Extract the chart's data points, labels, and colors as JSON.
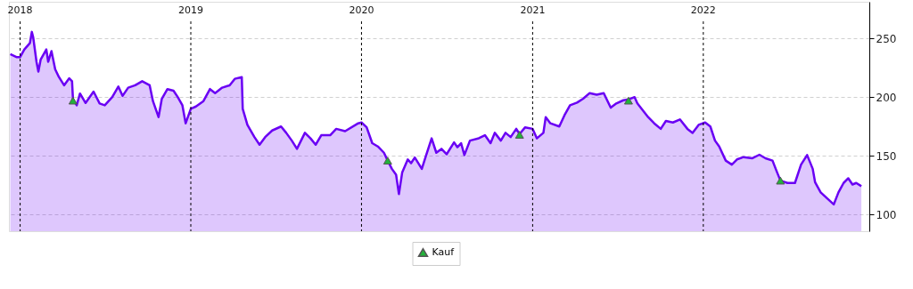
{
  "chart_data": {
    "type": "area",
    "xlim": [
      "2017-12-08",
      "2022-12-22"
    ],
    "ylim": [
      86,
      281
    ],
    "yticks": [
      100,
      150,
      200,
      250
    ],
    "xticks": [
      {
        "value": "2018-01-01",
        "label": "2018"
      },
      {
        "value": "2019-01-01",
        "label": "2019"
      },
      {
        "value": "2020-01-01",
        "label": "2020"
      },
      {
        "value": "2021-01-01",
        "label": "2021"
      },
      {
        "value": "2022-01-01",
        "label": "2022"
      }
    ],
    "grid": true,
    "legend": "bottom",
    "series": [
      {
        "color": "#6a00f4",
        "x": [
          "2017-12-11",
          "2017-12-24",
          "2018-01-01",
          "2018-01-10",
          "2018-01-22",
          "2018-01-26",
          "2018-01-29",
          "2018-02-05",
          "2018-02-09",
          "2018-02-14",
          "2018-02-26",
          "2018-03-02",
          "2018-03-09",
          "2018-03-17",
          "2018-03-25",
          "2018-04-05",
          "2018-04-16",
          "2018-04-22",
          "2018-04-24",
          "2018-05-02",
          "2018-05-09",
          "2018-05-21",
          "2018-06-07",
          "2018-06-20",
          "2018-07-01",
          "2018-07-17",
          "2018-07-30",
          "2018-08-08",
          "2018-08-20",
          "2018-09-04",
          "2018-09-19",
          "2018-10-05",
          "2018-10-12",
          "2018-10-24",
          "2018-10-31",
          "2018-11-12",
          "2018-11-25",
          "2018-12-04",
          "2018-12-14",
          "2018-12-21",
          "2019-01-01",
          "2019-01-12",
          "2019-01-28",
          "2019-02-11",
          "2019-02-22",
          "2019-03-09",
          "2019-03-25",
          "2019-04-05",
          "2019-04-20",
          "2019-04-22",
          "2019-05-02",
          "2019-05-17",
          "2019-05-28",
          "2019-06-09",
          "2019-06-24",
          "2019-07-13",
          "2019-07-24",
          "2019-08-05",
          "2019-08-16",
          "2019-09-02",
          "2019-09-14",
          "2019-09-25",
          "2019-10-07",
          "2019-10-26",
          "2019-11-08",
          "2019-11-27",
          "2019-12-25",
          "2020-01-01",
          "2020-01-12",
          "2020-01-24",
          "2020-02-05",
          "2020-02-18",
          "2020-02-26",
          "2020-03-06",
          "2020-03-15",
          "2020-03-21",
          "2020-03-28",
          "2020-04-09",
          "2020-04-16",
          "2020-04-24",
          "2020-05-09",
          "2020-05-17",
          "2020-05-30",
          "2020-06-09",
          "2020-06-20",
          "2020-07-01",
          "2020-07-17",
          "2020-07-24",
          "2020-08-01",
          "2020-08-08",
          "2020-08-20",
          "2020-09-08",
          "2020-09-21",
          "2020-10-03",
          "2020-10-12",
          "2020-10-25",
          "2020-11-04",
          "2020-11-15",
          "2020-11-27",
          "2020-12-04",
          "2020-12-16",
          "2021-01-01",
          "2021-01-10",
          "2021-01-24",
          "2021-01-29",
          "2021-02-08",
          "2021-02-27",
          "2021-03-10",
          "2021-03-22",
          "2021-04-06",
          "2021-04-19",
          "2021-05-03",
          "2021-05-18",
          "2021-06-02",
          "2021-06-17",
          "2021-06-29",
          "2021-07-14",
          "2021-07-25",
          "2021-08-07",
          "2021-08-13",
          "2021-09-05",
          "2021-09-18",
          "2021-10-02",
          "2021-10-13",
          "2021-10-28",
          "2021-11-12",
          "2021-11-28",
          "2021-12-09",
          "2021-12-22",
          "2022-01-05",
          "2022-01-16",
          "2022-01-26",
          "2022-02-04",
          "2022-02-18",
          "2022-03-03",
          "2022-03-14",
          "2022-03-28",
          "2022-04-16",
          "2022-05-01",
          "2022-05-14",
          "2022-05-29",
          "2022-06-08",
          "2022-06-15",
          "2022-06-30",
          "2022-07-16",
          "2022-07-29",
          "2022-08-11",
          "2022-08-23",
          "2022-08-28",
          "2022-09-09",
          "2022-09-24",
          "2022-10-07",
          "2022-10-17",
          "2022-10-28",
          "2022-11-07",
          "2022-11-16",
          "2022-11-24",
          "2022-12-05"
        ],
        "values": [
          236.5,
          234,
          234,
          240.5,
          246,
          255.4,
          250.7,
          230,
          221.6,
          232,
          240.5,
          230,
          239,
          223.6,
          217,
          210,
          216,
          213.5,
          198,
          193,
          203,
          195,
          204.7,
          194.6,
          193,
          200,
          209,
          201,
          208,
          210,
          213.5,
          210,
          196.6,
          183,
          198.6,
          206.8,
          205.4,
          200,
          193,
          177.7,
          190,
          192,
          196.6,
          206.8,
          203.4,
          208,
          210,
          215.5,
          217,
          190,
          176.4,
          166,
          159.5,
          166,
          171.6,
          175,
          169.6,
          163,
          156,
          169.6,
          164.9,
          159.5,
          167.6,
          167.6,
          173,
          171,
          177.7,
          178.4,
          174.3,
          160.8,
          158,
          152.7,
          146,
          139,
          134,
          117.6,
          135.8,
          147,
          143.8,
          148.6,
          139,
          149,
          164.9,
          152.7,
          156,
          151.4,
          161.5,
          157.4,
          160.8,
          150.7,
          163,
          165,
          167.6,
          160.8,
          169.6,
          163,
          169.6,
          166,
          173,
          168.6,
          174.3,
          173,
          164.9,
          169.6,
          183,
          177.7,
          175,
          184.5,
          193,
          195.3,
          198.6,
          203.4,
          202,
          203.4,
          191,
          194.6,
          197.3,
          198,
          200,
          194.6,
          183,
          177.7,
          173,
          179.7,
          178.4,
          181,
          173,
          169.6,
          176.4,
          178.4,
          175,
          163,
          158,
          146,
          142.6,
          147,
          149,
          148,
          151,
          148,
          146,
          135.8,
          129,
          127,
          127,
          142.6,
          150.7,
          139,
          127.7,
          119,
          113.5,
          108.8,
          119,
          127,
          131,
          125.7,
          127,
          124.3
        ]
      },
      {
        "type": "scatter",
        "name": "Kauf",
        "color": "#22b33a",
        "marker": "triangle",
        "x": [
          "2018-04-24",
          "2020-02-26",
          "2020-12-04",
          "2021-07-25",
          "2022-06-15"
        ],
        "values": [
          197,
          146,
          168,
          197,
          129
        ]
      }
    ]
  }
}
